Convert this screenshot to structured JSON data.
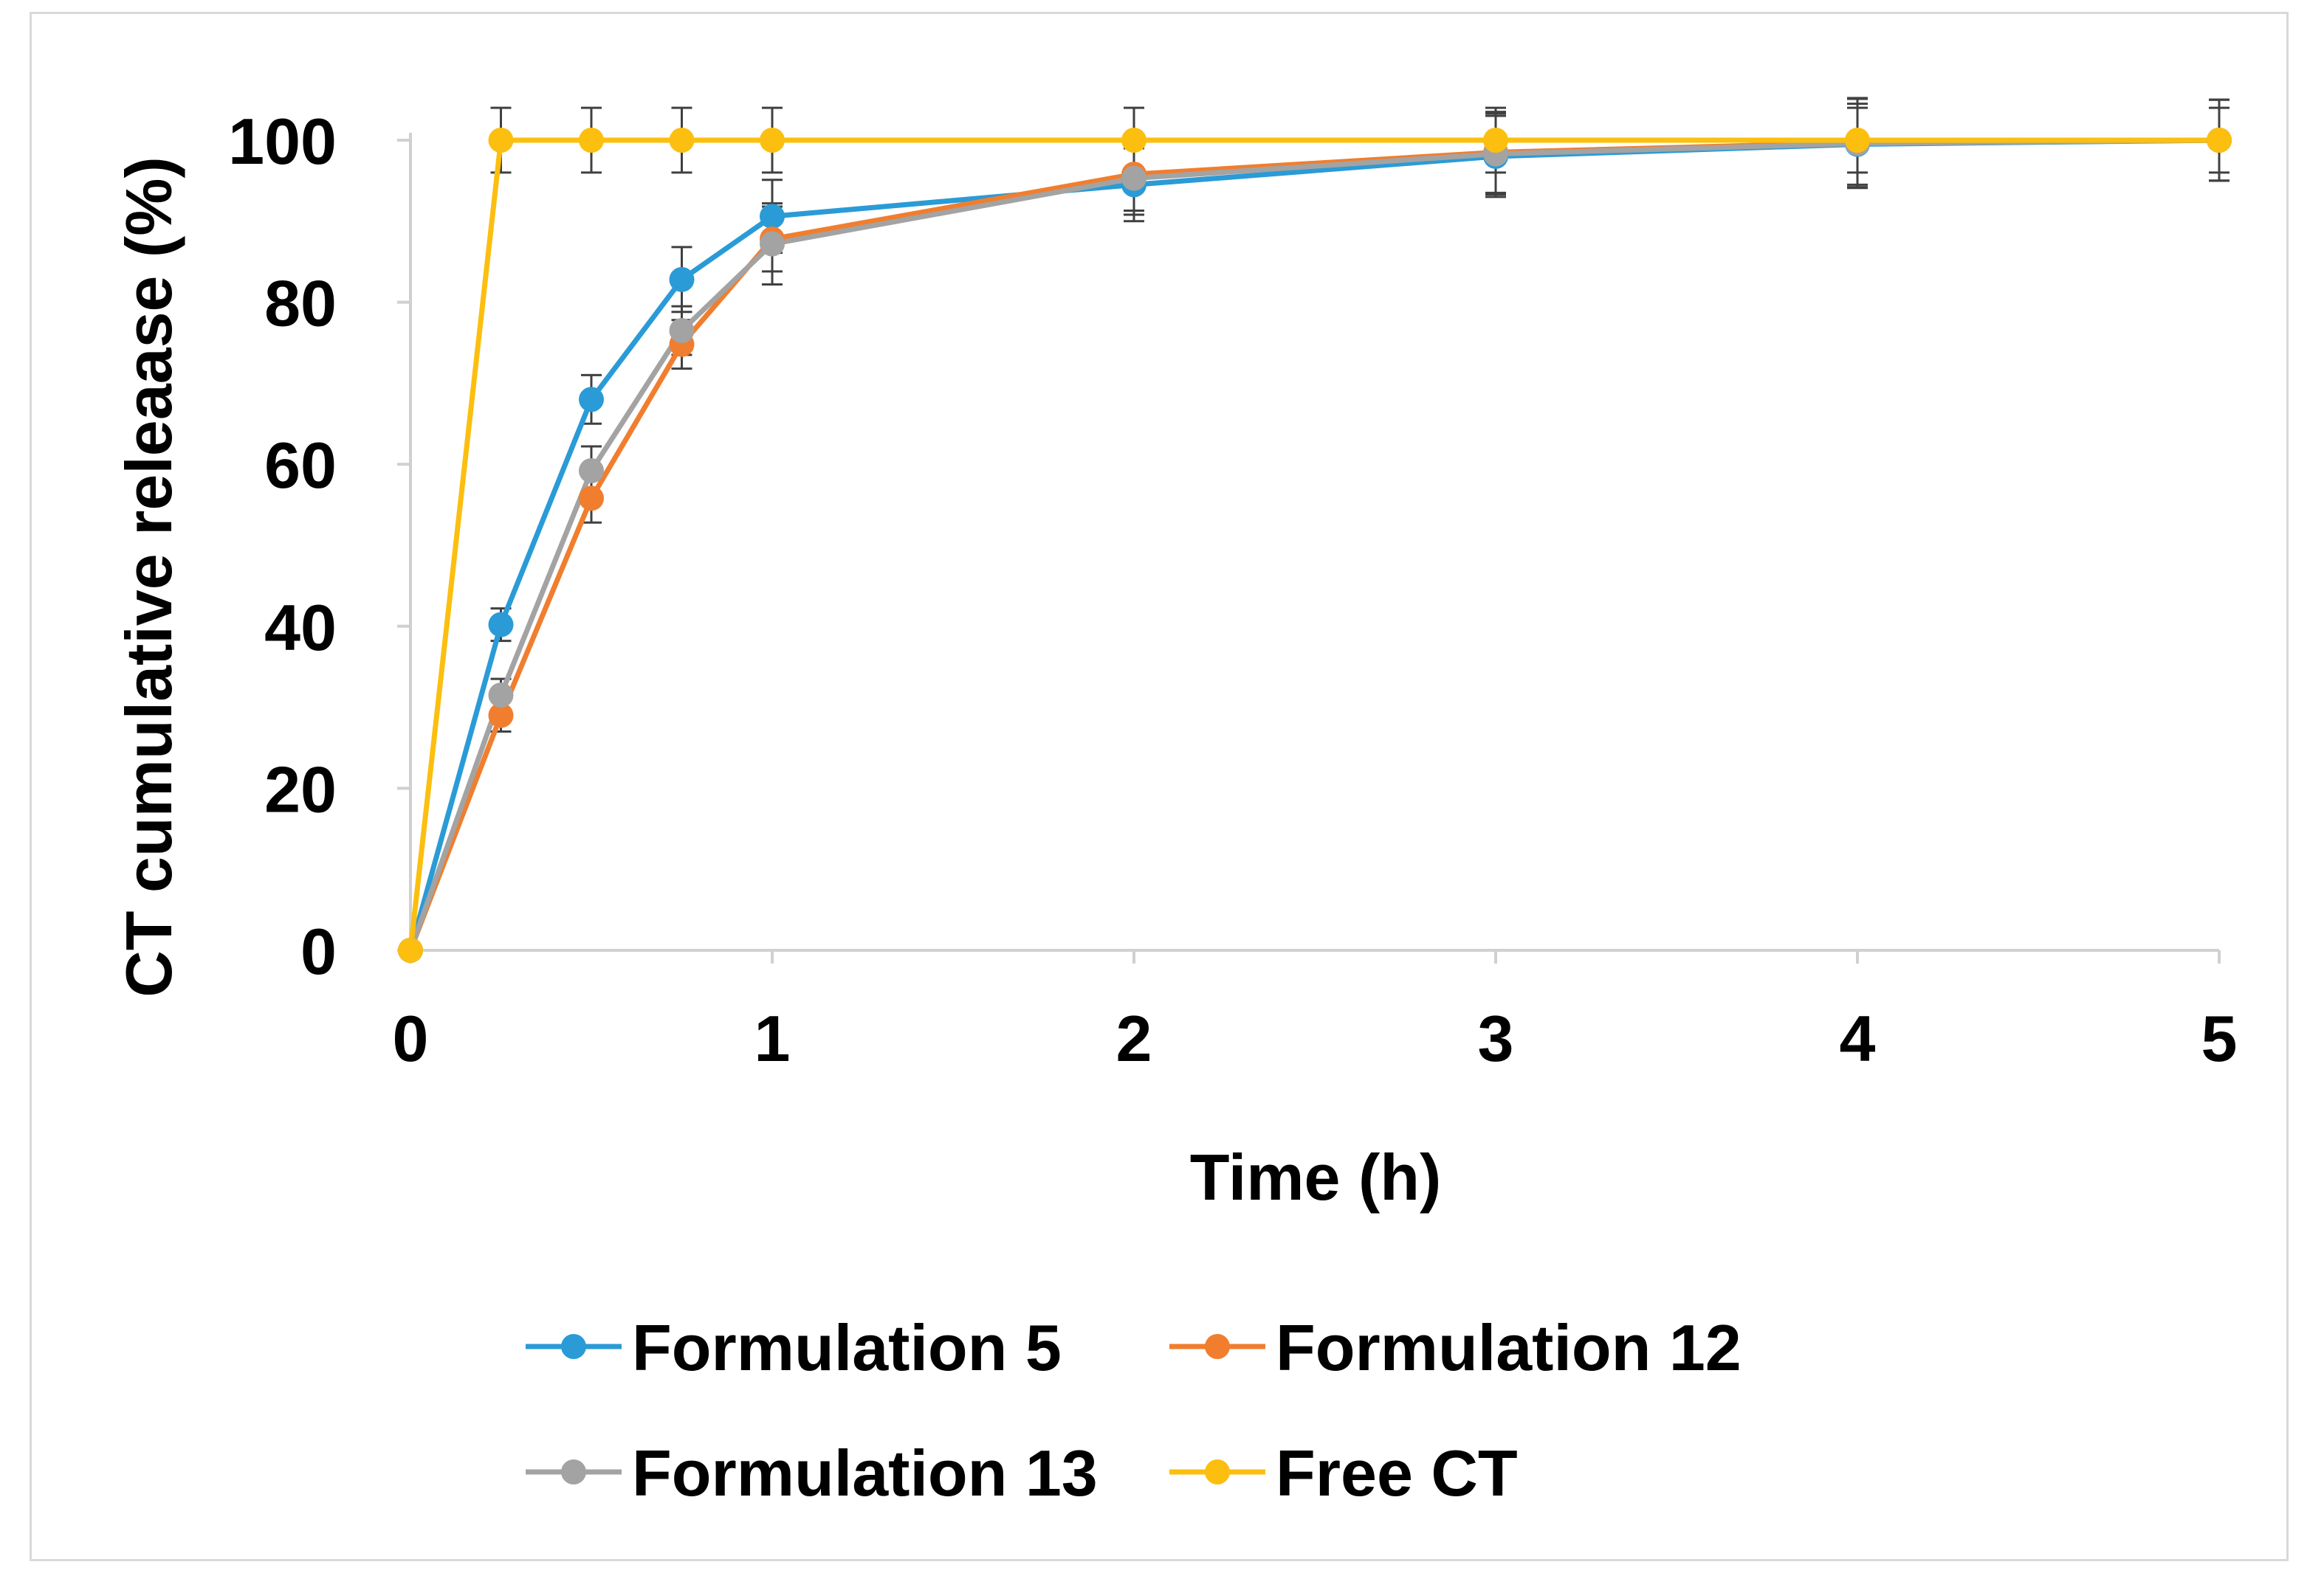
{
  "chart_data": {
    "type": "line",
    "title": "",
    "xlabel": "Time (h)",
    "ylabel": "CT cumulative releaase (%)",
    "xlim": [
      0,
      5
    ],
    "ylim": [
      0,
      100
    ],
    "xticks": [
      0,
      1,
      2,
      3,
      4,
      5
    ],
    "yticks": [
      0,
      20,
      40,
      60,
      80,
      100
    ],
    "x": [
      0,
      0.25,
      0.5,
      0.75,
      1,
      2,
      3,
      4,
      5
    ],
    "grid": false,
    "legend_position": "bottom",
    "series": [
      {
        "name": "Formulation 5",
        "color": "#2a9bd6",
        "values": [
          0,
          40.2,
          68.0,
          82.8,
          90.6,
          94.5,
          98.0,
          99.5,
          100
        ],
        "errors": [
          0,
          2.0,
          3.0,
          4.0,
          4.5,
          4.5,
          5.0,
          5.0,
          5.0
        ]
      },
      {
        "name": "Formulation 12",
        "color": "#f07e2e",
        "values": [
          0,
          29.0,
          55.8,
          74.8,
          87.8,
          95.8,
          98.5,
          99.7,
          100
        ],
        "errors": [
          0,
          2.0,
          3.0,
          3.0,
          4.0,
          4.5,
          5.0,
          5.5,
          5.0
        ]
      },
      {
        "name": "Formulation 13",
        "color": "#a3a3a3",
        "values": [
          0,
          31.5,
          59.2,
          76.5,
          87.2,
          95.3,
          98.3,
          99.6,
          100
        ],
        "errors": [
          0,
          2.0,
          3.0,
          3.0,
          5.0,
          4.5,
          5.0,
          5.5,
          5.0
        ]
      },
      {
        "name": "Free CT",
        "color": "#fcbf0f",
        "values": [
          0,
          100,
          100,
          100,
          100,
          100,
          100,
          100,
          100
        ],
        "errors": [
          0,
          4.0,
          4.0,
          4.0,
          4.0,
          4.0,
          4.0,
          4.0,
          4.0
        ]
      }
    ]
  }
}
